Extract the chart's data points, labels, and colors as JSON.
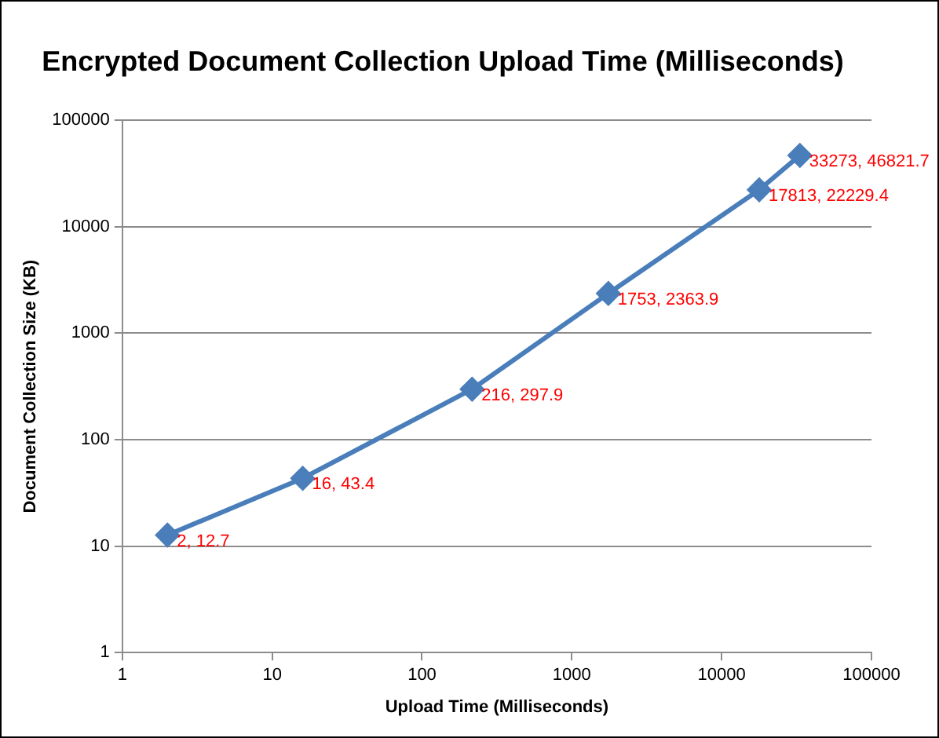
{
  "chart_data": {
    "type": "line",
    "title": "Encrypted Document Collection Upload Time (Milliseconds)",
    "xlabel": "Upload Time (Milliseconds)",
    "ylabel": "Document Collection Size (KB)",
    "x": [
      2,
      16,
      216,
      1753,
      17813,
      33273
    ],
    "series": [
      {
        "color": "#4a7ebb",
        "values": [
          12.7,
          43.4,
          297.9,
          2363.9,
          22229.4,
          46821.7
        ],
        "value_labels": [
          "2, 12.7",
          "16, 43.4",
          "216, 297.9",
          "1753, 2363.9",
          "17813, 22229.4",
          "33273, 46821.7"
        ]
      }
    ],
    "log": "xy",
    "xlim": [
      1,
      100000
    ],
    "ylim": [
      1,
      100000
    ],
    "xticks": [
      1,
      10,
      100,
      1000,
      10000,
      100000
    ],
    "yticks": [
      1,
      10,
      100,
      1000,
      10000,
      100000
    ],
    "grid": "y",
    "legend": false,
    "marker": "diamond",
    "line_style": "solid"
  }
}
